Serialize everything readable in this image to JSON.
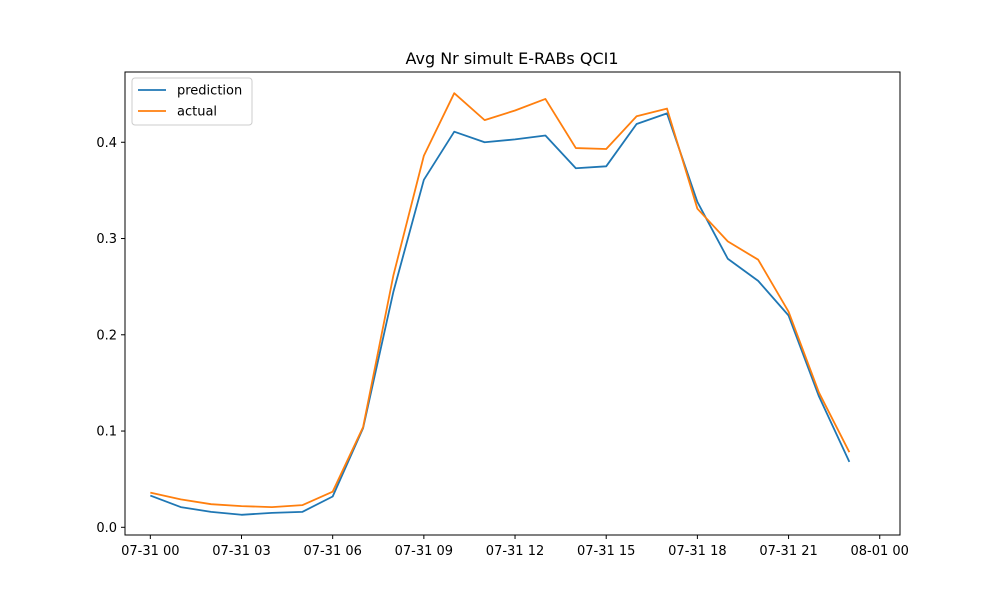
{
  "chart_data": {
    "type": "line",
    "title": "Avg Nr simult E-RABs QCI1",
    "xlabel": "",
    "ylabel": "",
    "x": [
      "07-31 00:00",
      "07-31 01:00",
      "07-31 02:00",
      "07-31 03:00",
      "07-31 04:00",
      "07-31 05:00",
      "07-31 06:00",
      "07-31 07:00",
      "07-31 08:00",
      "07-31 09:00",
      "07-31 10:00",
      "07-31 11:00",
      "07-31 12:00",
      "07-31 13:00",
      "07-31 14:00",
      "07-31 15:00",
      "07-31 16:00",
      "07-31 17:00",
      "07-31 18:00",
      "07-31 19:00",
      "07-31 20:00",
      "07-31 21:00",
      "07-31 22:00",
      "07-31 23:00"
    ],
    "xlim": [
      "07-30 23:10",
      "08-01 00:40"
    ],
    "ylim": [
      -0.008,
      0.473
    ],
    "x_ticks": [
      "07-31 00",
      "07-31 03",
      "07-31 06",
      "07-31 09",
      "07-31 12",
      "07-31 15",
      "07-31 18",
      "07-31 21",
      "08-01 00"
    ],
    "y_ticks": [
      0.0,
      0.1,
      0.2,
      0.3,
      0.4
    ],
    "y_tick_labels": [
      "0.0",
      "0.1",
      "0.2",
      "0.3",
      "0.4"
    ],
    "grid": false,
    "legend": "upper-left",
    "series": [
      {
        "name": "prediction",
        "color": "#1f77b4",
        "values": [
          0.033,
          0.021,
          0.016,
          0.013,
          0.015,
          0.016,
          0.032,
          0.103,
          0.245,
          0.361,
          0.411,
          0.4,
          0.403,
          0.407,
          0.373,
          0.375,
          0.419,
          0.43,
          0.338,
          0.279,
          0.256,
          0.22,
          0.136,
          0.068
        ]
      },
      {
        "name": "actual",
        "color": "#ff7f0e",
        "values": [
          0.036,
          0.029,
          0.024,
          0.022,
          0.021,
          0.023,
          0.037,
          0.104,
          0.262,
          0.386,
          0.451,
          0.423,
          0.433,
          0.445,
          0.394,
          0.393,
          0.427,
          0.435,
          0.331,
          0.297,
          0.278,
          0.224,
          0.14,
          0.078
        ]
      }
    ]
  }
}
